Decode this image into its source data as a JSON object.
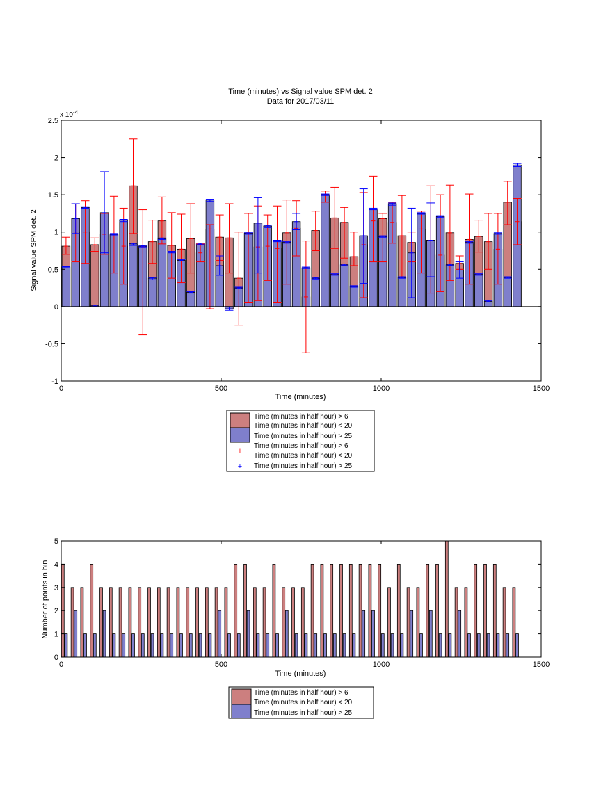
{
  "colors": {
    "red_fill": "#cc7f7f",
    "blue_fill": "#7f7fcc",
    "red_err": "#ff0000",
    "blue_err": "#0000ff",
    "edge": "#000000"
  },
  "legend1": {
    "red_bar": "Time (minutes in half hour) > 6",
    "red_bar2": "Time (minutes in half hour) < 20",
    "blue_bar": "Time (minutes in half hour) > 25",
    "red_err": "Time (minutes in half hour) > 6",
    "red_err2": "Time (minutes in half hour) < 20",
    "blue_err": "Time (minutes in half hour) > 25"
  },
  "legend2": {
    "red_bar": "Time (minutes in half hour) > 6",
    "red_bar2": "Time (minutes in half hour) < 20",
    "blue_bar": "Time (minutes in half hour) > 25"
  },
  "chart_data": [
    {
      "type": "bar",
      "title": "Time (minutes) vs Signal value SPM det. 2",
      "subtitle": "Data for 2017/03/11",
      "xlabel": "Time (minutes)",
      "ylabel": "Signal value SPM det. 2",
      "exponent_label": "x 10",
      "exponent_power": "-4",
      "xlim": [
        0,
        1500
      ],
      "ylim": [
        -1,
        2.5
      ],
      "xticks": [
        0,
        500,
        1000,
        1500
      ],
      "yticks": [
        -1,
        -0.5,
        0,
        0.5,
        1,
        1.5,
        2,
        2.5
      ],
      "series": [
        {
          "name": "Time (minutes in half hour) > 6 / < 20",
          "x": [
            15,
            45,
            75,
            105,
            135,
            165,
            195,
            225,
            255,
            285,
            315,
            345,
            375,
            405,
            435,
            465,
            495,
            525,
            555,
            585,
            615,
            645,
            675,
            705,
            735,
            765,
            795,
            825,
            855,
            885,
            915,
            945,
            975,
            1005,
            1035,
            1065,
            1095,
            1125,
            1155,
            1185,
            1215,
            1245,
            1275,
            1305,
            1335,
            1365,
            1395,
            1425
          ],
          "values": [
            0.81,
            1.0,
            1.0,
            0.83,
            0.97,
            0.96,
            0.81,
            1.62,
            0.8,
            0.87,
            1.15,
            0.82,
            0.77,
            0.91,
            0.72,
            1.04,
            0.93,
            0.92,
            0.38,
            0.99,
            0.8,
            0.81,
            0.78,
            0.99,
            1.05,
            0.13,
            1.02,
            1.5,
            1.19,
            1.13,
            0.67,
            0.83,
            1.15,
            1.18,
            1.13,
            0.95,
            0.86,
            1.04,
            0.89,
            0.69,
            0.99,
            0.58,
            0.9,
            0.94,
            0.87,
            0.77,
            1.4,
            1.14
          ],
          "err_low": [
            0.7,
            0.6,
            0.58,
            0.74,
            0.7,
            0.45,
            0.3,
            0.98,
            -0.38,
            0.58,
            0.84,
            0.38,
            0.32,
            0.45,
            0.6,
            -0.03,
            0.62,
            0.45,
            -0.25,
            0.05,
            0.08,
            0.35,
            0.05,
            0.3,
            0.68,
            -0.62,
            0.75,
            1.4,
            0.78,
            0.65,
            0.55,
            0.12,
            0.6,
            0.6,
            0.85,
            0.4,
            0.6,
            0.45,
            0.18,
            0.2,
            0.35,
            0.5,
            0.3,
            0.73,
            0.5,
            0.3,
            1.1,
            0.83
          ],
          "err_high": [
            0.93,
            1.38,
            1.42,
            0.92,
            1.25,
            1.48,
            1.32,
            2.25,
            1.3,
            1.16,
            1.47,
            1.26,
            1.24,
            1.38,
            0.84,
            1.1,
            1.23,
            1.38,
            1.0,
            1.25,
            1.35,
            1.23,
            1.35,
            1.43,
            1.42,
            0.88,
            1.28,
            1.55,
            1.6,
            1.33,
            1.0,
            1.53,
            1.75,
            1.25,
            1.4,
            1.49,
            1.0,
            1.28,
            1.62,
            1.5,
            1.63,
            0.68,
            1.51,
            1.16,
            1.25,
            1.25,
            1.68,
            1.45
          ]
        },
        {
          "name": "Time (minutes in half hour) > 25",
          "x": [
            15,
            45,
            75,
            105,
            135,
            165,
            195,
            225,
            255,
            285,
            315,
            345,
            375,
            405,
            435,
            465,
            495,
            525,
            555,
            585,
            615,
            645,
            675,
            705,
            735,
            765,
            795,
            825,
            855,
            885,
            915,
            945,
            975,
            1005,
            1035,
            1065,
            1095,
            1125,
            1155,
            1185,
            1215,
            1245,
            1275,
            1305,
            1335,
            1365,
            1395,
            1425
          ],
          "values": [
            0.53,
            1.18,
            1.33,
            0.01,
            1.26,
            0.97,
            1.16,
            0.84,
            0.81,
            0.38,
            0.91,
            0.73,
            0.62,
            0.19,
            0.84,
            1.43,
            0.55,
            -0.03,
            0.25,
            0.98,
            1.12,
            1.08,
            0.88,
            0.86,
            1.14,
            0.52,
            0.38,
            1.5,
            0.43,
            0.56,
            0.27,
            0.95,
            1.31,
            0.94,
            1.38,
            0.39,
            0.72,
            1.25,
            0.89,
            1.21,
            0.56,
            0.49,
            0.86,
            0.43,
            0.07,
            0.98,
            0.39,
            1.9
          ],
          "err_low": [
            0.53,
            0.98,
            1.32,
            0.0,
            0.72,
            0.96,
            1.14,
            0.82,
            0.8,
            0.36,
            0.9,
            0.72,
            0.61,
            0.18,
            0.83,
            1.41,
            0.42,
            -0.05,
            0.24,
            0.97,
            0.45,
            1.06,
            0.87,
            0.85,
            1.03,
            0.51,
            0.37,
            1.49,
            0.42,
            0.55,
            0.26,
            0.31,
            1.3,
            0.93,
            1.36,
            0.38,
            0.12,
            1.24,
            0.4,
            1.2,
            0.55,
            0.38,
            0.85,
            0.42,
            0.06,
            0.97,
            0.38,
            1.88
          ],
          "err_high": [
            0.54,
            1.38,
            1.34,
            0.02,
            1.81,
            0.98,
            1.17,
            0.85,
            0.82,
            0.39,
            0.92,
            0.74,
            0.63,
            0.2,
            0.85,
            1.44,
            0.68,
            0.0,
            0.26,
            0.99,
            1.46,
            1.09,
            0.89,
            0.87,
            1.25,
            0.53,
            0.39,
            1.51,
            0.44,
            0.57,
            0.28,
            1.58,
            1.32,
            0.95,
            1.39,
            0.4,
            1.32,
            1.26,
            1.39,
            1.22,
            0.57,
            0.6,
            0.87,
            0.44,
            0.08,
            0.99,
            0.4,
            1.92
          ]
        }
      ]
    },
    {
      "type": "bar",
      "title": "",
      "xlabel": "Time (minutes)",
      "ylabel": "Number of points in bin",
      "xlim": [
        0,
        1500
      ],
      "ylim": [
        0,
        5
      ],
      "xticks": [
        0,
        500,
        1000,
        1500
      ],
      "yticks": [
        0,
        1,
        2,
        3,
        4,
        5
      ],
      "series": [
        {
          "name": "Time (minutes in half hour) > 6 / < 20",
          "x": [
            5,
            35,
            65,
            95,
            125,
            155,
            185,
            215,
            245,
            275,
            305,
            335,
            365,
            395,
            425,
            455,
            485,
            515,
            545,
            575,
            605,
            635,
            665,
            695,
            725,
            755,
            785,
            815,
            845,
            875,
            905,
            935,
            965,
            995,
            1025,
            1055,
            1085,
            1115,
            1145,
            1175,
            1205,
            1235,
            1265,
            1295,
            1325,
            1355,
            1385,
            1415
          ],
          "values": [
            4,
            3,
            3,
            4,
            3,
            3,
            3,
            3,
            3,
            3,
            3,
            3,
            3,
            3,
            3,
            3,
            3,
            3,
            4,
            4,
            3,
            3,
            4,
            3,
            3,
            3,
            4,
            4,
            4,
            4,
            4,
            4,
            4,
            4,
            3,
            4,
            3,
            3,
            4,
            4,
            5,
            3,
            3,
            4,
            4,
            4,
            3,
            3
          ]
        },
        {
          "name": "Time (minutes in half hour) > 25",
          "x": [
            15,
            45,
            75,
            105,
            135,
            165,
            195,
            225,
            255,
            285,
            315,
            345,
            375,
            405,
            435,
            465,
            495,
            525,
            555,
            585,
            615,
            645,
            675,
            705,
            735,
            765,
            795,
            825,
            855,
            885,
            915,
            945,
            975,
            1005,
            1035,
            1065,
            1095,
            1125,
            1155,
            1185,
            1215,
            1245,
            1275,
            1305,
            1335,
            1365,
            1395,
            1425
          ],
          "values": [
            1,
            2,
            1,
            1,
            2,
            1,
            1,
            1,
            1,
            1,
            1,
            1,
            1,
            1,
            1,
            1,
            2,
            1,
            1,
            2,
            1,
            1,
            1,
            2,
            1,
            1,
            1,
            1,
            1,
            1,
            1,
            2,
            2,
            1,
            1,
            1,
            2,
            1,
            2,
            1,
            1,
            2,
            1,
            1,
            1,
            1,
            1,
            1
          ]
        }
      ]
    }
  ]
}
